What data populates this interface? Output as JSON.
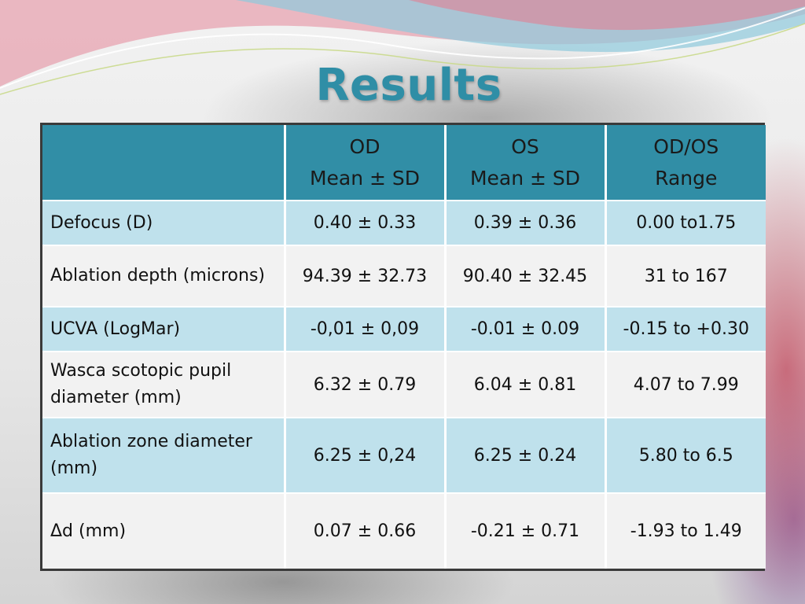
{
  "slide": {
    "title": "Results"
  },
  "table": {
    "headers": [
      {
        "line1": "",
        "line2": ""
      },
      {
        "line1": "OD",
        "line2": "Mean ± SD"
      },
      {
        "line1": "OS",
        "line2": "Mean ± SD"
      },
      {
        "line1": "OD/OS",
        "line2": "Range"
      }
    ],
    "rows": [
      {
        "label": "Defocus (D)",
        "od": "0.40 ± 0.33",
        "os": "0.39 ± 0.36",
        "range": "0.00 to1.75"
      },
      {
        "label": "Ablation depth (microns)",
        "od": "94.39 ± 32.73",
        "os": "90.40 ± 32.45",
        "range": "31 to 167"
      },
      {
        "label": "UCVA (LogMar)",
        "od": "-0,01 ± 0,09",
        "os": "-0.01 ± 0.09",
        "range": "-0.15 to +0.30"
      },
      {
        "label": "Wasca scotopic pupil diameter (mm)",
        "od": "6.32 ± 0.79",
        "os": "6.04 ± 0.81",
        "range": "4.07 to 7.99"
      },
      {
        "label": "Ablation zone diameter (mm)",
        "od": "6.25 ± 0,24",
        "os": "6.25 ± 0.24",
        "range": "5.80 to 6.5"
      },
      {
        "label": "Δd (mm)",
        "od": "0.07 ± 0.66",
        "os": "-0.21 ± 0.71",
        "range": "-1.93 to 1.49"
      }
    ]
  },
  "colors": {
    "title": "#2f8ea6",
    "header_bg": "#318ea6",
    "band_row_bg": "#bfe1ec",
    "plain_row_bg": "#f2f2f2",
    "table_border": "#3a3a3a"
  }
}
